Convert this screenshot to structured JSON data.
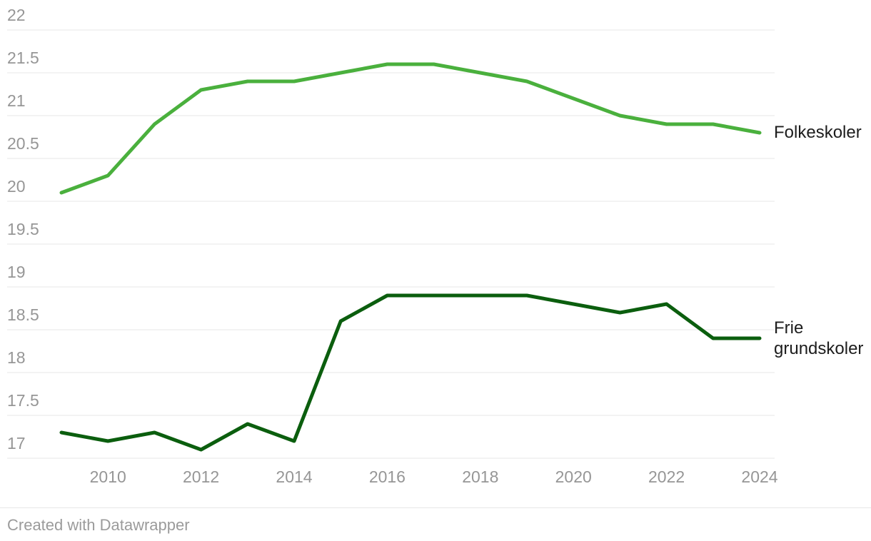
{
  "footer": {
    "credit": "Created with Datawrapper"
  },
  "colors": {
    "background": "#ffffff",
    "gridline": "#e7e7e7",
    "tick_label": "#969696",
    "series_label": "#1d1d1d",
    "separator": "#e7e7e7"
  },
  "chart_data": {
    "type": "line",
    "title": "",
    "xlabel": "",
    "ylabel": "",
    "x": [
      2009,
      2010,
      2011,
      2012,
      2013,
      2014,
      2015,
      2016,
      2017,
      2018,
      2019,
      2020,
      2021,
      2022,
      2023,
      2024
    ],
    "x_tick_labels": [
      "2010",
      "2012",
      "2014",
      "2016",
      "2018",
      "2020",
      "2022",
      "2024"
    ],
    "y_ticks": [
      17,
      17.5,
      18,
      18.5,
      19,
      19.5,
      20,
      20.5,
      21,
      21.5,
      22
    ],
    "y_tick_labels": [
      "17",
      "17.5",
      "18",
      "18.5",
      "19",
      "19.5",
      "20",
      "20.5",
      "21",
      "21.5",
      "22"
    ],
    "ylim": [
      17,
      22
    ],
    "grid": "horizontal",
    "legend_position": "end-of-line-labels",
    "series": [
      {
        "name": "Folkeskoler",
        "color": "#4ab03d",
        "values": [
          20.1,
          20.3,
          20.9,
          21.3,
          21.4,
          21.4,
          21.5,
          21.6,
          21.6,
          21.5,
          21.4,
          21.2,
          21.0,
          20.9,
          20.9,
          20.8
        ]
      },
      {
        "name": "Frie grundskoler",
        "color": "#0b5e0e",
        "values": [
          17.3,
          17.2,
          17.3,
          17.1,
          17.4,
          17.2,
          18.6,
          18.9,
          18.9,
          18.9,
          18.9,
          18.8,
          18.7,
          18.8,
          18.4,
          18.4
        ]
      }
    ]
  }
}
